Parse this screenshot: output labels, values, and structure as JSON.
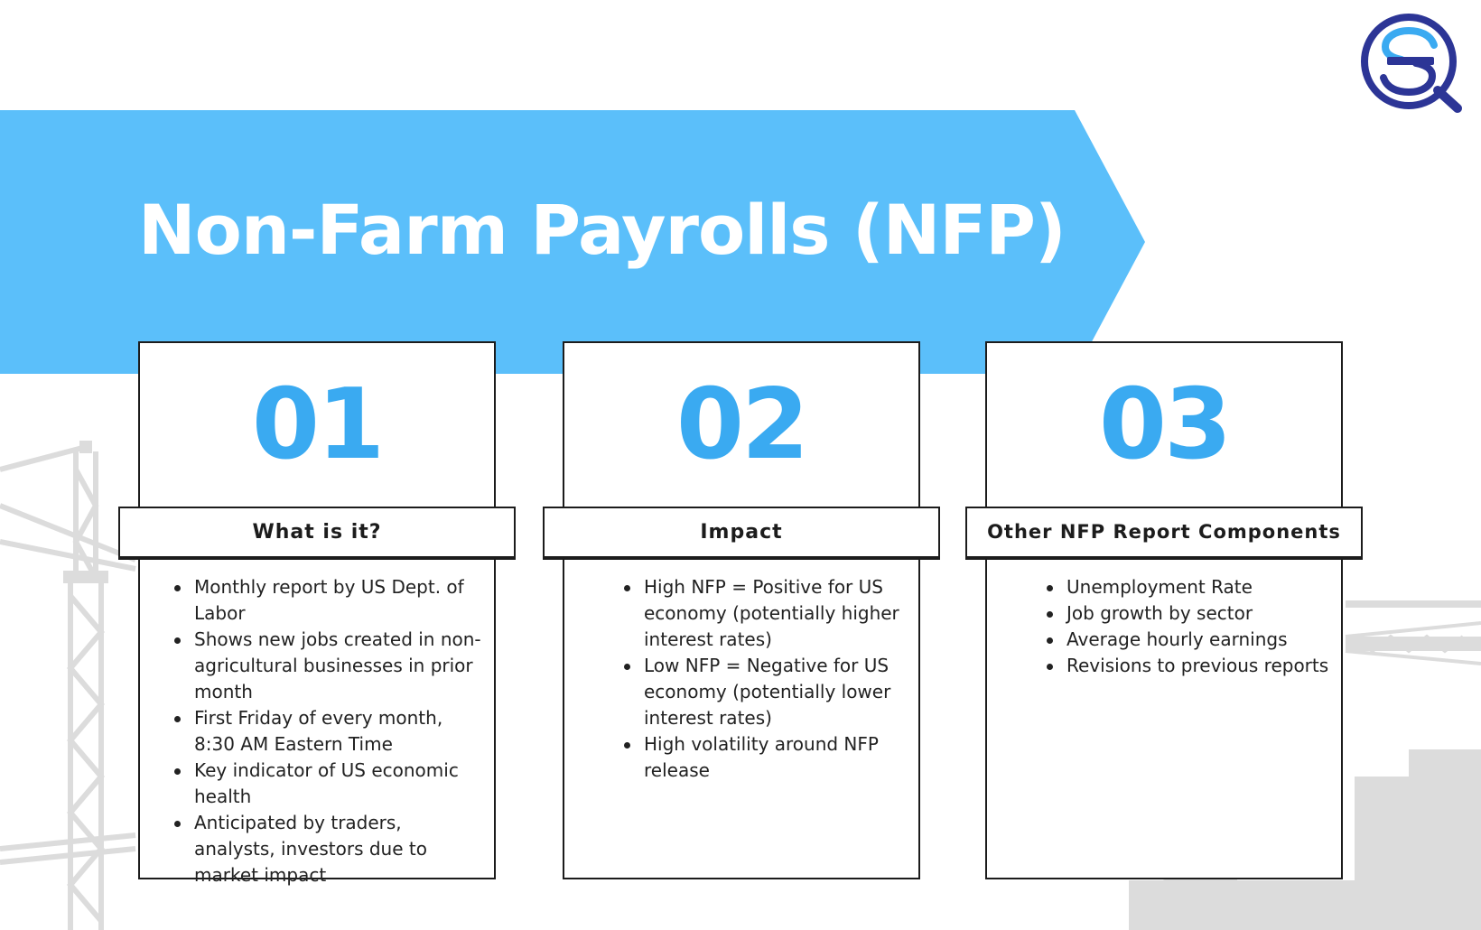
{
  "header": {
    "title": "Non-Farm Payrolls (NFP)",
    "logo": "sq-magnifier-logo"
  },
  "colors": {
    "banner": "#5bbffa",
    "number": "#3aaaf1",
    "border": "#1c1c1c",
    "logo": "#2c3596",
    "logo_accent": "#3aaaf1",
    "silhouette": "#dcdcdc"
  },
  "cards": [
    {
      "number": "01",
      "label": "What is it?",
      "items": [
        "Monthly report by US Dept. of Labor",
        "Shows new jobs created in non-agricultural businesses in prior month",
        "First Friday of every month, 8:30 AM Eastern Time",
        "Key indicator of US economic health",
        "Anticipated by traders, analysts, investors due to market impact"
      ]
    },
    {
      "number": "02",
      "label": "Impact",
      "items": [
        "High NFP = Positive for US economy (potentially higher interest rates)",
        "Low NFP = Negative for US economy (potentially lower interest rates)",
        "High volatility around NFP release"
      ]
    },
    {
      "number": "03",
      "label": "Other NFP Report Components",
      "items": [
        "Unemployment Rate",
        "Job growth by sector",
        "Average hourly earnings",
        "Revisions to previous reports"
      ]
    }
  ]
}
